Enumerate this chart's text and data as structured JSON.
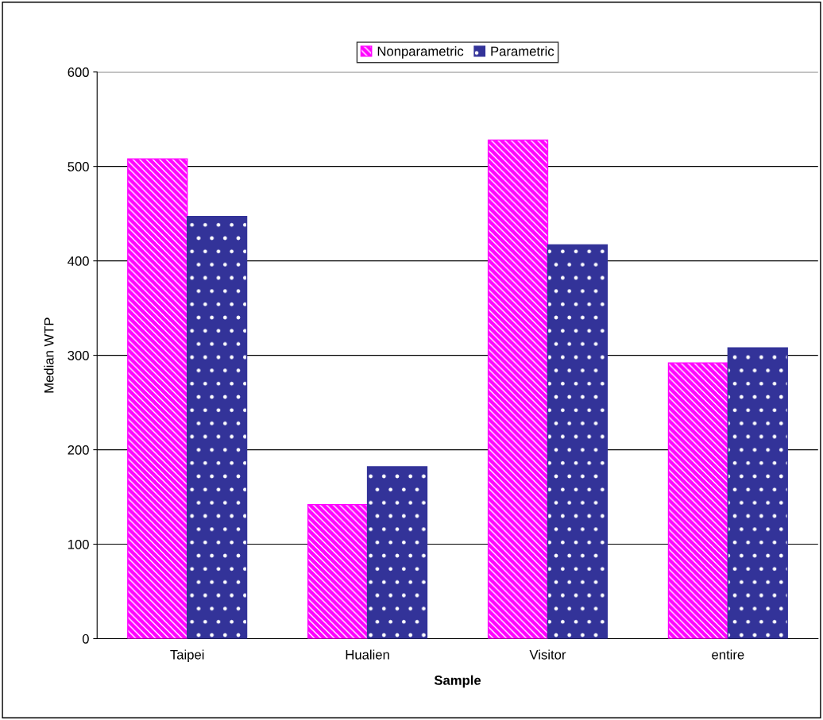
{
  "chart_data": {
    "type": "bar",
    "xlabel": "Sample",
    "ylabel": "Median WTP",
    "categories": [
      "Taipei",
      "Hualien",
      "Visitor",
      "entire"
    ],
    "series": [
      {
        "name": "Nonparametric",
        "color": "#ff00ff",
        "values": [
          508,
          142,
          528,
          292
        ]
      },
      {
        "name": "Parametric",
        "color": "#333399",
        "values": [
          447,
          182,
          417,
          308
        ]
      }
    ],
    "ylim": [
      0,
      600
    ],
    "yticks": [
      0,
      100,
      200,
      300,
      400,
      500,
      600
    ],
    "grid": "y",
    "legend": "top"
  }
}
